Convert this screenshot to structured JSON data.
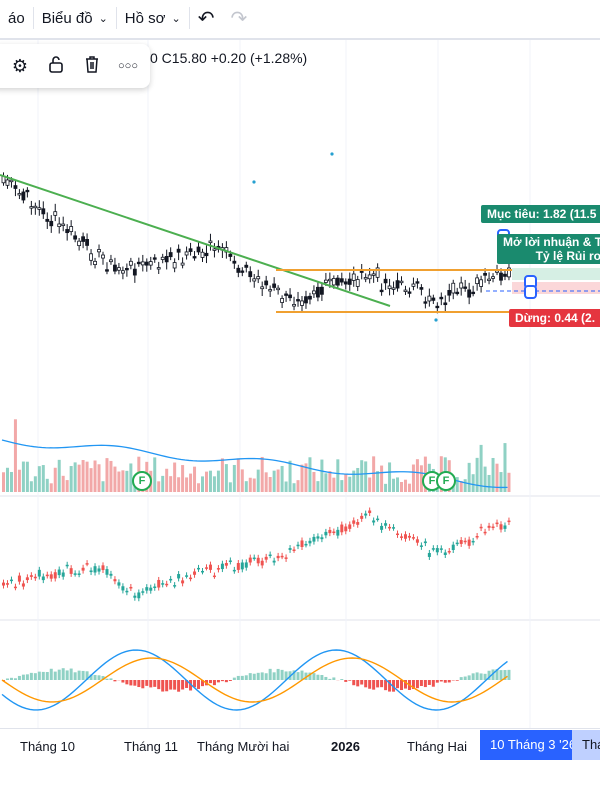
{
  "topbar": {
    "alerts_partial": "áo",
    "chart_menu": "Biểu đồ",
    "profile_menu": "Hồ sơ",
    "undo_icon": "undo-icon",
    "redo_icon": "redo-icon"
  },
  "drawing_toolbar": {
    "icons": [
      "gear-icon",
      "unlock-icon",
      "trash-icon",
      "more-icon"
    ],
    "more_label": "○○○"
  },
  "legend": {
    "ohlc_text": "0  C15.80  +0.20 (+1.28%)"
  },
  "position_tool": {
    "target_label": "Mục tiêu: 1.82 (11.5",
    "pnl_line1": "Mở  lời nhuận & T",
    "pnl_line2": "Tỷ lệ Rủi ro",
    "stop_label": "Dừng: 0.44 (2."
  },
  "events": {
    "badge_label": "F"
  },
  "xaxis": {
    "labels": [
      "Tháng 10",
      "Tháng 11",
      "Tháng Mười hai",
      "2026",
      "Tháng Hai"
    ],
    "highlight": "10 Tháng 3 '26",
    "tail": "Thá"
  },
  "colors": {
    "up": "#26a69a",
    "down": "#ef5350",
    "candle": "#131722",
    "trendline": "#4caf50",
    "range": "#f0a030",
    "macd": "#2196f3",
    "signal": "#ff9800",
    "target": "#1a8a6e",
    "stop": "#e5353f",
    "accent": "#2962ff"
  }
}
